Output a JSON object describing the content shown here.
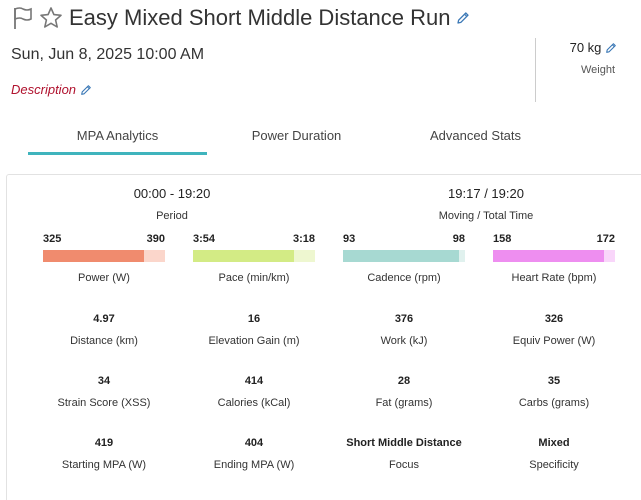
{
  "header": {
    "title": "Easy Mixed Short Middle Distance Run",
    "date": "Sun, Jun 8, 2025 10:00 AM",
    "description_label": "Description",
    "weight_value": "70 kg",
    "weight_label": "Weight"
  },
  "tabs": [
    {
      "label": "MPA Analytics",
      "active": true
    },
    {
      "label": "Power Duration",
      "active": false
    },
    {
      "label": "Advanced Stats",
      "active": false
    }
  ],
  "summary": {
    "period_value": "00:00 - 19:20",
    "period_label": "Period",
    "moving_value": "19:17 / 19:20",
    "moving_label": "Moving / Total Time"
  },
  "gauges": [
    {
      "low": "325",
      "high": "390",
      "label": "Power (W)",
      "fill_fraction": 0.83,
      "fill_color": "#f08b6e",
      "rest_color": "#fbd6cb"
    },
    {
      "low": "3:54",
      "high": "3:18",
      "label": "Pace (min/km)",
      "fill_fraction": 0.83,
      "fill_color": "#d3eb85",
      "rest_color": "#eef7d0"
    },
    {
      "low": "93",
      "high": "98",
      "label": "Cadence (rpm)",
      "fill_fraction": 0.95,
      "fill_color": "#a7d9d2",
      "rest_color": "#e0f1ee"
    },
    {
      "low": "158",
      "high": "172",
      "label": "Heart Rate (bpm)",
      "fill_fraction": 0.91,
      "fill_color": "#ee8ef0",
      "rest_color": "#f9d6fa"
    }
  ],
  "stats": [
    {
      "value": "4.97",
      "label": "Distance (km)"
    },
    {
      "value": "16",
      "label": "Elevation Gain (m)"
    },
    {
      "value": "376",
      "label": "Work (kJ)"
    },
    {
      "value": "326",
      "label": "Equiv Power (W)"
    },
    {
      "value": "34",
      "label": "Strain Score (XSS)"
    },
    {
      "value": "414",
      "label": "Calories (kCal)"
    },
    {
      "value": "28",
      "label": "Fat (grams)"
    },
    {
      "value": "35",
      "label": "Carbs (grams)"
    },
    {
      "value": "419",
      "label": "Starting MPA (W)"
    },
    {
      "value": "404",
      "label": "Ending MPA (W)"
    },
    {
      "value": "Short Middle Distance",
      "label": "Focus"
    },
    {
      "value": "Mixed",
      "label": "Specificity"
    }
  ],
  "colors": {
    "accent": "#3fb4bd",
    "description": "#b0122e",
    "edit_icon": "#3b78b6"
  },
  "icons": {
    "flag": "flag-icon",
    "star": "star-icon",
    "edit": "pencil-icon"
  }
}
